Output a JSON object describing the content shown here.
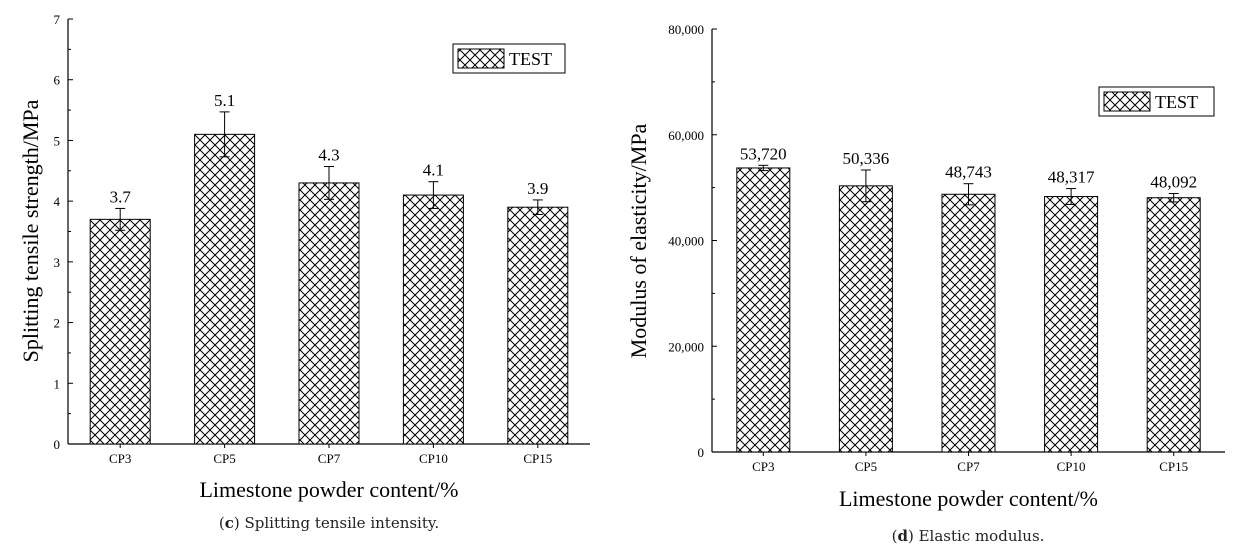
{
  "chart_data": [
    {
      "type": "bar",
      "caption_letter": "c",
      "caption_text": " Splitting tensile intensity.",
      "xlabel": "Limestone powder content/%",
      "ylabel": "Splitting tensile strength/MPa",
      "categories": [
        "CP3",
        "CP5",
        "CP7",
        "CP10",
        "CP15"
      ],
      "series": [
        {
          "name": "TEST",
          "values": [
            3.7,
            5.1,
            4.3,
            4.1,
            3.9
          ],
          "errors": [
            0.18,
            0.37,
            0.27,
            0.22,
            0.12
          ]
        }
      ],
      "value_labels": [
        "3.7",
        "5.1",
        "4.3",
        "4.1",
        "3.9"
      ],
      "yticks": [
        "0",
        "1",
        "2",
        "3",
        "4",
        "5",
        "6",
        "7"
      ],
      "ylim": [
        0,
        7
      ],
      "legend": "top-right",
      "pattern": "crosshatch"
    },
    {
      "type": "bar",
      "caption_letter": "d",
      "caption_text": " Elastic modulus.",
      "xlabel": "Limestone powder content/%",
      "ylabel": "Modulus of elasticity/MPa",
      "categories": [
        "CP3",
        "CP5",
        "CP7",
        "CP10",
        "CP15"
      ],
      "series": [
        {
          "name": "TEST",
          "values": [
            53720,
            50336,
            48743,
            48317,
            48092
          ],
          "errors": [
            500,
            3000,
            2000,
            1500,
            800
          ]
        }
      ],
      "value_labels": [
        "53,720",
        "50,336",
        "48,743",
        "48,317",
        "48,092"
      ],
      "yticks": [
        "0",
        "20,000",
        "40,000",
        "60,000",
        "80,000"
      ],
      "ylim": [
        0,
        80000
      ],
      "legend": "top-right",
      "pattern": "crosshatch"
    }
  ]
}
